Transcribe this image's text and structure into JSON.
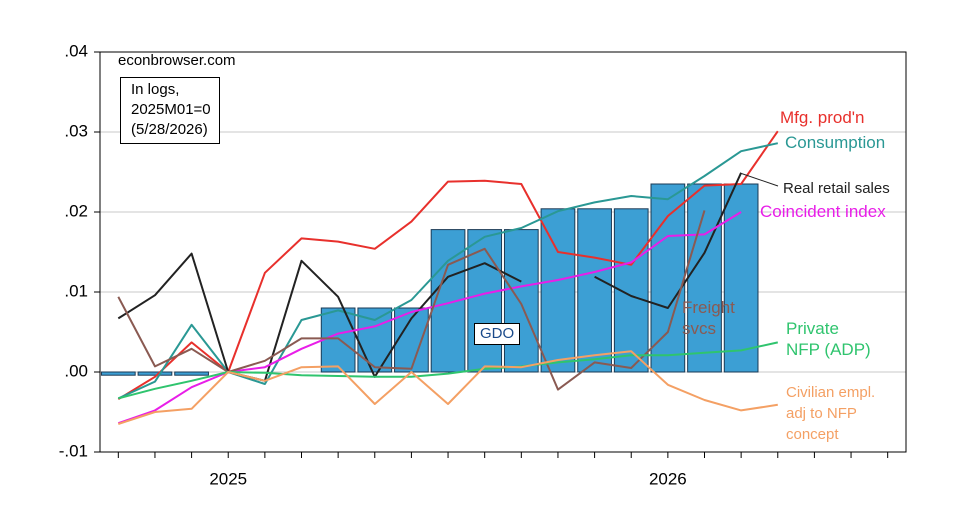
{
  "chart_data": {
    "type": "line",
    "source": "econbrowser.com",
    "note": "In logs,\n2025M01=0\n(5/28/2026)",
    "categories": [
      null,
      null,
      null,
      "2025",
      null,
      null,
      null,
      null,
      null,
      null,
      null,
      null,
      null,
      null,
      null,
      "2026",
      null,
      null,
      null,
      null,
      null,
      null
    ],
    "ylim": [
      -0.01,
      0.04
    ],
    "yticks": [
      {
        "value": -0.01,
        "label": "-.01"
      },
      {
        "value": 0,
        "label": ".00"
      },
      {
        "value": 0.01,
        "label": ".01"
      },
      {
        "value": 0.02,
        "label": ".02"
      },
      {
        "value": 0.03,
        "label": ".03"
      },
      {
        "value": 0.04,
        "label": ".04"
      }
    ],
    "grid": true,
    "bars": {
      "name": "GDO",
      "color": "#3c9fd4",
      "values": [
        -0.0004,
        -0.0004,
        -0.0004,
        null,
        null,
        null,
        0.008,
        0.008,
        0.008,
        0.0178,
        0.0178,
        0.0178,
        0.0204,
        0.0204,
        0.0204,
        0.0235,
        0.0235,
        0.0235,
        null,
        null,
        null,
        null
      ]
    },
    "series": [
      {
        "name": "Mfg. prod'n",
        "color": "#e8302c",
        "values": [
          -0.0034,
          -0.0006,
          0.0037,
          0,
          0.0124,
          0.0167,
          0.0163,
          0.0154,
          0.0188,
          0.0238,
          0.0239,
          0.0235,
          0.015,
          0.0143,
          0.0134,
          0.0195,
          0.0233,
          0.0235,
          0.0301,
          null,
          null,
          null
        ]
      },
      {
        "name": "Consumption",
        "color": "#2a9894",
        "values": [
          -0.0033,
          -0.0012,
          0.0059,
          0,
          -0.0015,
          0.0065,
          0.0077,
          0.0065,
          0.009,
          0.0139,
          0.0169,
          0.018,
          0.0201,
          0.0212,
          0.022,
          0.0216,
          0.0245,
          0.0276,
          0.0286,
          null,
          null,
          null
        ]
      },
      {
        "name": "Real retail sales",
        "color": "#222222",
        "values": [
          0.0067,
          0.0096,
          0.0148,
          0,
          -0.0011,
          0.0139,
          0.0094,
          -0.0006,
          0.0067,
          0.0119,
          0.0136,
          0.0113,
          null,
          0.0119,
          0.0095,
          0.008,
          0.0149,
          0.0249,
          null,
          null,
          null,
          null
        ]
      },
      {
        "name": "Coincident index",
        "color": "#e81ee8",
        "values": [
          -0.0064,
          -0.0048,
          -0.0019,
          0,
          0.0006,
          0.0029,
          0.0048,
          0.0057,
          0.0075,
          0.0086,
          0.0098,
          0.0107,
          0.0115,
          0.0125,
          0.0137,
          0.017,
          0.0172,
          0.02,
          null,
          null,
          null,
          null
        ]
      },
      {
        "name": "Freight\nsvcs",
        "color": "#8a5a52",
        "values": [
          0.0094,
          0.0007,
          0.0029,
          0,
          0.0014,
          0.0042,
          0.0042,
          0.0006,
          0.0004,
          0.0134,
          0.0154,
          0.0085,
          -0.0022,
          0.0012,
          0.0005,
          0.005,
          0.0202,
          null,
          null,
          null,
          null,
          null
        ]
      },
      {
        "name": "Private\nNFP (ADP)",
        "color": "#2fc46e",
        "values": [
          -0.0033,
          -0.0021,
          -0.0011,
          0,
          -0.0001,
          -0.0004,
          -0.0005,
          -0.0006,
          -0.0006,
          -0.0002,
          0.0004,
          0.0007,
          0.0012,
          0.0016,
          0.0021,
          0.0021,
          0.0024,
          0.0027,
          0.0037,
          null,
          null,
          null
        ]
      },
      {
        "name": "Civilian empl.\nadj to NFP\nconcept",
        "color": "#f4a064",
        "values": [
          -0.0065,
          -0.005,
          -0.0046,
          0,
          -0.0011,
          0.0006,
          0.0007,
          -0.004,
          0,
          -0.004,
          0.0007,
          0.0006,
          0.0015,
          0.0021,
          0.0026,
          -0.0016,
          -0.0035,
          -0.0048,
          -0.0041,
          null,
          null,
          null
        ]
      }
    ]
  }
}
